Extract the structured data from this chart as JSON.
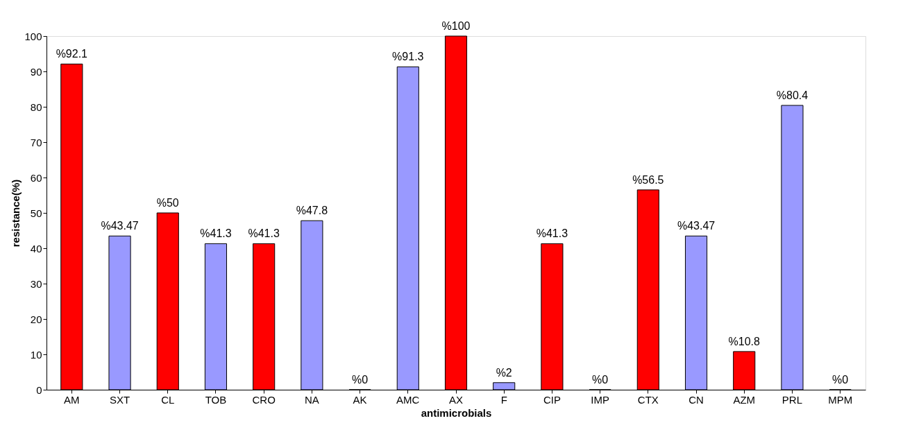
{
  "chart_data": {
    "type": "bar",
    "xlabel": "antimicrobials",
    "ylabel": "resistance(%)",
    "categories": [
      "AM",
      "SXT",
      "CL",
      "TOB",
      "CRO",
      "NA",
      "AK",
      "AMC",
      "AX",
      "F",
      "CIP",
      "IMP",
      "CTX",
      "CN",
      "AZM",
      "PRL",
      "MPM"
    ],
    "values": [
      92.1,
      43.47,
      50,
      41.3,
      41.3,
      47.8,
      0,
      91.3,
      100,
      2,
      41.3,
      0,
      56.5,
      43.47,
      10.8,
      80.4,
      0
    ],
    "colors": [
      "#ff0000",
      "#9999ff",
      "#ff0000",
      "#9999ff",
      "#ff0000",
      "#9999ff",
      "#ff0000",
      "#9999ff",
      "#ff0000",
      "#9999ff",
      "#ff0000",
      "#9999ff",
      "#ff0000",
      "#9999ff",
      "#ff0000",
      "#9999ff",
      "#ff0000"
    ],
    "value_labels": [
      "%92.1",
      "%43.47",
      "%50",
      "%41.3",
      "%41.3",
      "%47.8",
      "%0",
      "%91.3",
      "%100",
      "%2",
      "%41.3",
      "%0",
      "%56.5",
      "%43.47",
      "%10.8",
      "%80.4",
      "%0"
    ],
    "ylim": [
      0,
      100
    ],
    "yticks": [
      0,
      10,
      20,
      30,
      40,
      50,
      60,
      70,
      80,
      90,
      100
    ],
    "grid": false
  }
}
